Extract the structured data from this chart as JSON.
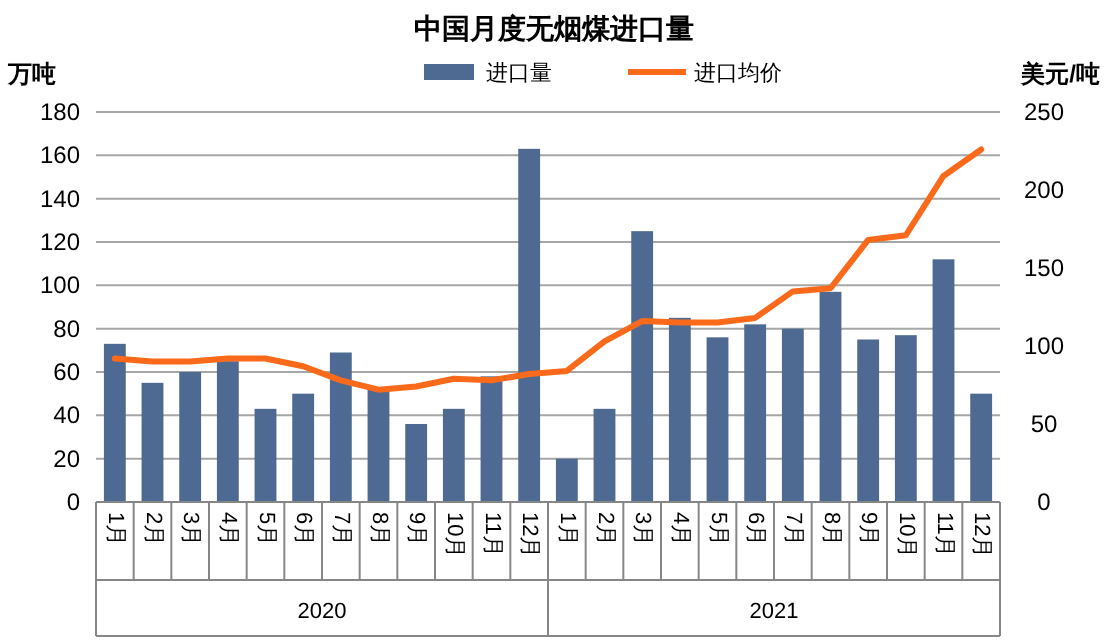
{
  "chart_data": {
    "type": "bar",
    "title": "中国月度无烟煤进口量",
    "ylabel": "万吨",
    "y2label": "美元/吨",
    "categories": [
      "1月",
      "2月",
      "3月",
      "4月",
      "5月",
      "6月",
      "7月",
      "8月",
      "9月",
      "10月",
      "11月",
      "12月",
      "1月",
      "2月",
      "3月",
      "4月",
      "5月",
      "6月",
      "7月",
      "8月",
      "9月",
      "10月",
      "11月",
      "12月"
    ],
    "series": [
      {
        "name": "进口量",
        "color": "#4f6a92",
        "values": [
          73,
          55,
          60,
          65,
          43,
          50,
          69,
          52,
          36,
          43,
          58,
          163,
          20,
          43,
          125,
          85,
          76,
          82,
          80,
          97,
          75,
          77,
          112,
          50
        ]
      },
      {
        "name": "进口均价",
        "type": "line",
        "axis": "y2",
        "color": "#fb6a1a",
        "values": [
          92,
          90,
          90,
          92,
          92,
          87,
          78,
          72,
          74,
          79,
          78,
          82,
          84,
          103,
          116,
          115,
          115,
          118,
          135,
          137,
          168,
          171,
          209,
          226
        ]
      }
    ],
    "annotations": [
      "2020",
      "2021"
    ],
    "ylim": [
      0,
      180
    ],
    "yticks": [
      0,
      20,
      40,
      60,
      80,
      100,
      120,
      140,
      160,
      180
    ],
    "y2lim": [
      0,
      250
    ],
    "y2ticks": [
      0,
      50,
      100,
      150,
      200,
      250
    ],
    "grid": "y",
    "legend": "top",
    "line_style": "solid"
  }
}
